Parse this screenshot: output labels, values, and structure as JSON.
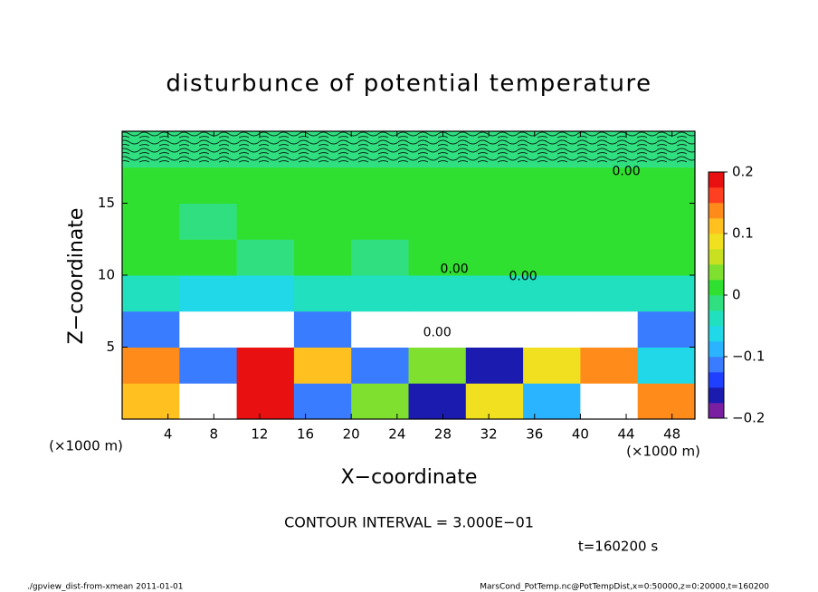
{
  "chart_data": {
    "type": "heatmap",
    "title": "disturbunce of potential temperature",
    "x_label": "X−coordinate",
    "y_label": "Z−coordinate",
    "x_unit_left": "(×1000 m)",
    "x_unit_right": "(×1000 m)",
    "contour_interval": "CONTOUR INTERVAL = 3.000E−01",
    "time_label": "t=160200 s",
    "footer_left": "./gpview_dist-from-xmean  2011-01-01",
    "footer_right": "MarsCond_PotTemp.nc@PotTempDist,x=0:50000,z=0:20000,t=160200",
    "xlim": [
      0,
      50
    ],
    "ylim": [
      0,
      20
    ],
    "xticks": [
      4,
      8,
      12,
      16,
      20,
      24,
      28,
      32,
      36,
      40,
      44,
      48
    ],
    "yticks": [
      5,
      10,
      15
    ],
    "x": [
      2.5,
      7.5,
      12.5,
      17.5,
      22.5,
      27.5,
      32.5,
      37.5,
      42.5,
      47.5
    ],
    "y": [
      1.25,
      3.75,
      6.25,
      8.75,
      11.25,
      13.75,
      16.25,
      18.75
    ],
    "z": [
      [
        0.12,
        -0.25,
        0.18,
        -0.12,
        0.05,
        -0.15,
        0.1,
        -0.08,
        -0.25,
        0.14
      ],
      [
        0.15,
        -0.1,
        0.18,
        0.12,
        -0.12,
        0.05,
        -0.15,
        0.1,
        0.15,
        -0.05
      ],
      [
        -0.12,
        -0.25,
        -0.25,
        -0.1,
        -0.25,
        -0.25,
        -0.25,
        -0.25,
        -0.25,
        -0.1
      ],
      [
        -0.04,
        -0.05,
        -0.06,
        -0.04,
        -0.03,
        -0.03,
        -0.03,
        -0.03,
        -0.04,
        -0.04
      ],
      [
        0.01,
        0.01,
        0.0,
        0.01,
        0.0,
        0.02,
        0.02,
        0.01,
        0.01,
        0.01
      ],
      [
        0.01,
        0.0,
        0.01,
        0.01,
        0.01,
        0.02,
        0.02,
        0.01,
        0.01,
        0.01
      ],
      [
        0.01,
        0.01,
        0.01,
        0.01,
        0.01,
        0.01,
        0.01,
        0.01,
        0.01,
        0.01
      ],
      [
        0.0,
        0.0,
        0.0,
        0.0,
        0.0,
        0.0,
        0.0,
        0.0,
        0.0,
        0.0
      ]
    ],
    "annotations": [
      {
        "text": "0.00",
        "x": 44,
        "y": 17.2
      },
      {
        "text": "0.00",
        "x": 29,
        "y": 10.4
      },
      {
        "text": "0.00",
        "x": 35,
        "y": 9.9
      },
      {
        "text": "0.00",
        "x": 27.5,
        "y": 6.0
      }
    ],
    "colorbar": {
      "levels": [
        -0.2,
        -0.175,
        -0.15,
        -0.125,
        -0.1,
        -0.075,
        -0.05,
        -0.025,
        0,
        0.025,
        0.05,
        0.075,
        0.1,
        0.125,
        0.15,
        0.175,
        0.2
      ],
      "colors": [
        "#7a1fa2",
        "#1b1bb0",
        "#2040ff",
        "#3a7cff",
        "#2ab4ff",
        "#20d8e8",
        "#20e0c0",
        "#30e080",
        "#30e030",
        "#80e030",
        "#c8e020",
        "#f0e020",
        "#ffc020",
        "#ff8c1a",
        "#ff4020",
        "#e81010",
        "#ffb0b0"
      ],
      "ticks": [
        {
          "value": -0.2,
          "label": "−0.2"
        },
        {
          "value": -0.1,
          "label": "−0.1"
        },
        0,
        0.1,
        0.2
      ]
    }
  }
}
